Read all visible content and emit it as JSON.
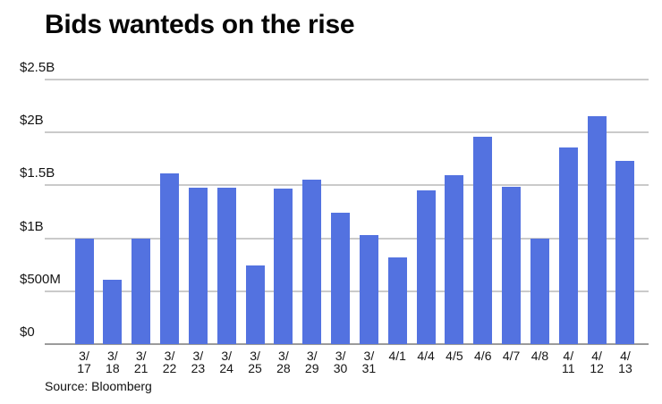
{
  "title": "Bids wanteds on the rise",
  "source": "Source: Bloomberg",
  "colors": {
    "bar": "#5372e0",
    "gridline": "#cacaca",
    "axis_line": "#9b9b9b",
    "text": "#151515",
    "background": "#ffffff"
  },
  "chart_data": {
    "type": "bar",
    "title": "Bids wanteds on the rise",
    "xlabel": "",
    "ylabel": "",
    "unit": "USD (M = millions, B = billions)",
    "ylim": [
      0,
      2500
    ],
    "grid": true,
    "legend": false,
    "y_ticks": [
      {
        "value": 0,
        "label": "$0"
      },
      {
        "value": 500,
        "label": "$500M"
      },
      {
        "value": 1000,
        "label": "$1B"
      },
      {
        "value": 1500,
        "label": "$1.5B"
      },
      {
        "value": 2000,
        "label": "$2B"
      },
      {
        "value": 2500,
        "label": "$2.5B"
      }
    ],
    "categories": [
      "3/17",
      "3/18",
      "3/21",
      "3/22",
      "3/23",
      "3/24",
      "3/25",
      "3/28",
      "3/29",
      "3/30",
      "3/31",
      "4/1",
      "4/4",
      "4/5",
      "4/6",
      "4/7",
      "4/8",
      "4/11",
      "4/12",
      "4/13"
    ],
    "category_label_lines": [
      [
        "3/",
        "17"
      ],
      [
        "3/",
        "18"
      ],
      [
        "3/",
        "21"
      ],
      [
        "3/",
        "22"
      ],
      [
        "3/",
        "23"
      ],
      [
        "3/",
        "24"
      ],
      [
        "3/",
        "25"
      ],
      [
        "3/",
        "28"
      ],
      [
        "3/",
        "29"
      ],
      [
        "3/",
        "30"
      ],
      [
        "3/",
        "31"
      ],
      [
        "4/1"
      ],
      [
        "4/4"
      ],
      [
        "4/5"
      ],
      [
        "4/6"
      ],
      [
        "4/7"
      ],
      [
        "4/8"
      ],
      [
        "4/",
        "11"
      ],
      [
        "4/",
        "12"
      ],
      [
        "4/",
        "13"
      ]
    ],
    "values_millions": [
      1000,
      610,
      1000,
      1610,
      1480,
      1480,
      740,
      1470,
      1550,
      1240,
      1030,
      820,
      1450,
      1600,
      1960,
      1490,
      1000,
      1860,
      2150,
      1730
    ],
    "source": "Source: Bloomberg"
  }
}
